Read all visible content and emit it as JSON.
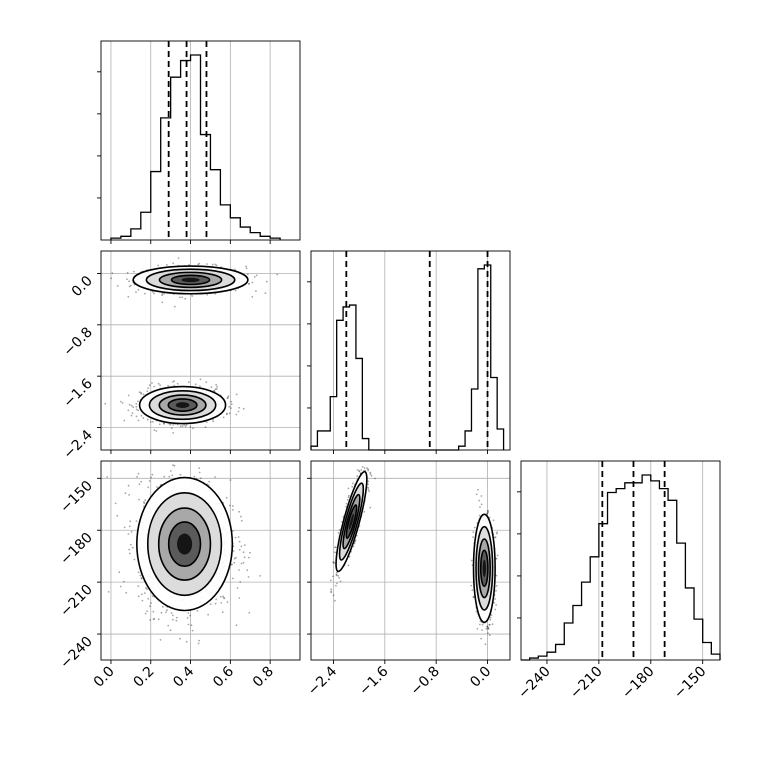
{
  "chart_data": {
    "type": "corner",
    "title": "",
    "grid": true,
    "parameters": [
      {
        "name": "",
        "range": [
          -0.05,
          0.95
        ],
        "ticks": [
          "0.0",
          "0.2",
          "0.4",
          "0.6",
          "0.8"
        ],
        "tick_values": [
          0.0,
          0.2,
          0.4,
          0.6,
          0.8
        ]
      },
      {
        "name": "",
        "range": [
          -2.75,
          0.35
        ],
        "ticks": [
          "−2.4",
          "−1.6",
          "−0.8",
          "0.0"
        ],
        "tick_values": [
          -2.4,
          -1.6,
          -0.8,
          0.0
        ]
      },
      {
        "name": "",
        "range": [
          -255,
          -140
        ],
        "ticks": [
          "−240",
          "−210",
          "−180",
          "−150"
        ],
        "tick_values": [
          -240,
          -210,
          -180,
          -150
        ]
      }
    ],
    "histograms": [
      {
        "param": 0,
        "bin_edges": [
          0.0,
          0.05,
          0.1,
          0.15,
          0.2,
          0.25,
          0.3,
          0.35,
          0.4,
          0.45,
          0.5,
          0.55,
          0.6,
          0.65,
          0.7,
          0.75,
          0.8,
          0.85
        ],
        "counts": [
          1,
          2,
          6,
          15,
          37,
          66,
          88,
          97,
          100,
          57,
          38,
          19,
          12,
          7,
          4,
          2,
          1
        ],
        "quantiles": [
          0.29,
          0.38,
          0.48
        ]
      },
      {
        "param": 1,
        "bin_edges": [
          -2.75,
          -2.65,
          -2.55,
          -2.45,
          -2.35,
          -2.25,
          -2.15,
          -2.05,
          -1.95,
          -1.85,
          -1.75,
          -1.65,
          -1.55,
          -1.45,
          -1.35,
          -1.25,
          -1.15,
          -1.05,
          -0.95,
          -0.85,
          -0.75,
          -0.65,
          -0.55,
          -0.45,
          -0.35,
          -0.25,
          -0.15,
          -0.05,
          0.05,
          0.15,
          0.25
        ],
        "counts": [
          2,
          10,
          10,
          28,
          68,
          75,
          76,
          48,
          6,
          0,
          0,
          0,
          0,
          0,
          0,
          0,
          0,
          0,
          0,
          0,
          0,
          0,
          0,
          2,
          10,
          32,
          95,
          97,
          38,
          11
        ],
        "quantiles": [
          -2.2,
          -0.9,
          0.0
        ]
      },
      {
        "param": 2,
        "bin_edges": [
          -255,
          -250,
          -245,
          -240,
          -235,
          -230,
          -225,
          -220,
          -215,
          -210,
          -205,
          -200,
          -195,
          -190,
          -185,
          -180,
          -175,
          -170,
          -165,
          -160,
          -155,
          -150,
          -145,
          -140
        ],
        "counts": [
          0,
          1,
          2,
          4,
          8,
          19,
          28,
          40,
          53,
          70,
          86,
          88,
          91,
          91,
          95,
          92,
          88,
          82,
          60,
          37,
          21,
          9,
          3
        ],
        "quantiles": [
          -208,
          -190,
          -172
        ]
      }
    ],
    "joint_2d": [
      {
        "x_param": 0,
        "y_param": 1,
        "modes": [
          {
            "x_mean": 0.4,
            "y_mean": -0.1,
            "x_sd": 0.12,
            "y_sd": 0.09,
            "weight": 0.48
          },
          {
            "x_mean": 0.36,
            "y_mean": -2.05,
            "x_sd": 0.09,
            "y_sd": 0.12,
            "weight": 0.52
          }
        ]
      },
      {
        "x_param": 0,
        "y_param": 2,
        "modes": [
          {
            "x_mean": 0.37,
            "y_mean": -188,
            "x_sd": 0.1,
            "y_sd": 16,
            "weight": 1.0
          }
        ]
      },
      {
        "x_param": 1,
        "y_param": 2,
        "modes": [
          {
            "x_mean": -2.12,
            "y_mean": -175,
            "x_sd": 0.1,
            "y_sd": 12,
            "correlation": 0.85,
            "weight": 0.52
          },
          {
            "x_mean": -0.05,
            "y_mean": -202,
            "x_sd": 0.07,
            "y_sd": 13,
            "weight": 0.48
          }
        ]
      }
    ]
  }
}
